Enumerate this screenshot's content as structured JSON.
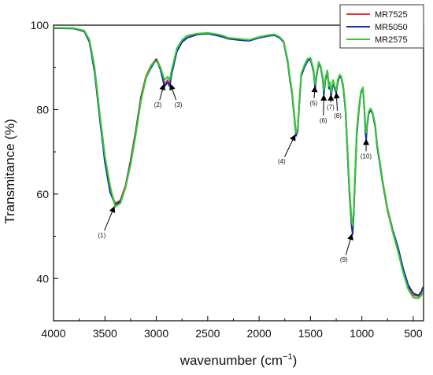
{
  "chart_data": {
    "type": "line",
    "xlabel": "wavenumber (cm",
    "xlabel_sup": "−1",
    "xlabel_close": ")",
    "ylabel": "Transmitance (%)",
    "xlim": [
      4000,
      400
    ],
    "ylim": [
      30,
      100
    ],
    "x_reversed": true,
    "x_ticks": [
      4000,
      3500,
      3000,
      2500,
      2000,
      1500,
      1000,
      500
    ],
    "y_ticks": [
      40,
      60,
      80,
      100
    ],
    "grid": false,
    "legend_position": "top-right",
    "series": [
      {
        "name": "MR7525",
        "color": "#e8322b",
        "points": [
          [
            4000,
            99.3
          ],
          [
            3800,
            99.2
          ],
          [
            3700,
            98.5
          ],
          [
            3650,
            96
          ],
          [
            3600,
            89
          ],
          [
            3550,
            78
          ],
          [
            3500,
            68
          ],
          [
            3450,
            61
          ],
          [
            3400,
            57.8
          ],
          [
            3350,
            58.5
          ],
          [
            3300,
            62
          ],
          [
            3250,
            68
          ],
          [
            3200,
            75
          ],
          [
            3150,
            83
          ],
          [
            3100,
            88
          ],
          [
            3050,
            90.5
          ],
          [
            3000,
            92
          ],
          [
            2960,
            90
          ],
          [
            2920,
            86
          ],
          [
            2890,
            87
          ],
          [
            2870,
            86
          ],
          [
            2850,
            89
          ],
          [
            2800,
            94
          ],
          [
            2750,
            96
          ],
          [
            2700,
            97
          ],
          [
            2600,
            97.8
          ],
          [
            2500,
            98
          ],
          [
            2400,
            97.5
          ],
          [
            2350,
            97.2
          ],
          [
            2300,
            96.8
          ],
          [
            2200,
            96.5
          ],
          [
            2100,
            96.3
          ],
          [
            2000,
            97
          ],
          [
            1900,
            97.5
          ],
          [
            1850,
            97.6
          ],
          [
            1800,
            97
          ],
          [
            1760,
            96
          ],
          [
            1720,
            91
          ],
          [
            1700,
            87
          ],
          [
            1680,
            84
          ],
          [
            1660,
            79
          ],
          [
            1640,
            74
          ],
          [
            1625,
            75
          ],
          [
            1610,
            81
          ],
          [
            1590,
            88
          ],
          [
            1560,
            90
          ],
          [
            1530,
            91.5
          ],
          [
            1500,
            92
          ],
          [
            1470,
            89
          ],
          [
            1455,
            85.5
          ],
          [
            1440,
            88
          ],
          [
            1420,
            91
          ],
          [
            1400,
            90
          ],
          [
            1380,
            87
          ],
          [
            1370,
            84
          ],
          [
            1355,
            87
          ],
          [
            1335,
            89
          ],
          [
            1320,
            85
          ],
          [
            1310,
            86
          ],
          [
            1300,
            83.5
          ],
          [
            1280,
            86.5
          ],
          [
            1265,
            85
          ],
          [
            1250,
            84
          ],
          [
            1235,
            86.5
          ],
          [
            1215,
            88
          ],
          [
            1200,
            87.5
          ],
          [
            1180,
            85
          ],
          [
            1160,
            80
          ],
          [
            1140,
            70
          ],
          [
            1120,
            60
          ],
          [
            1100,
            53
          ],
          [
            1090,
            51
          ],
          [
            1080,
            55
          ],
          [
            1065,
            65
          ],
          [
            1050,
            74
          ],
          [
            1030,
            80
          ],
          [
            1010,
            84
          ],
          [
            990,
            85
          ],
          [
            975,
            80
          ],
          [
            965,
            75
          ],
          [
            958,
            73.5
          ],
          [
            950,
            76
          ],
          [
            935,
            79
          ],
          [
            915,
            80
          ],
          [
            895,
            79
          ],
          [
            870,
            76
          ],
          [
            850,
            71
          ],
          [
            830,
            68
          ],
          [
            800,
            63
          ],
          [
            750,
            56
          ],
          [
            700,
            51
          ],
          [
            650,
            47
          ],
          [
            600,
            42
          ],
          [
            550,
            38
          ],
          [
            500,
            36
          ],
          [
            450,
            35.8
          ],
          [
            420,
            36.5
          ],
          [
            405,
            37.5
          ]
        ]
      },
      {
        "name": "MR5050",
        "color": "#1a2ea8",
        "points": [
          [
            4000,
            99.3
          ],
          [
            3800,
            99.2
          ],
          [
            3700,
            98.5
          ],
          [
            3650,
            96
          ],
          [
            3600,
            89
          ],
          [
            3550,
            78
          ],
          [
            3500,
            67.5
          ],
          [
            3450,
            60.5
          ],
          [
            3400,
            57.5
          ],
          [
            3350,
            58.2
          ],
          [
            3300,
            61.5
          ],
          [
            3250,
            67.5
          ],
          [
            3200,
            74.5
          ],
          [
            3150,
            82.5
          ],
          [
            3100,
            87.5
          ],
          [
            3050,
            90
          ],
          [
            3000,
            91.8
          ],
          [
            2960,
            89.5
          ],
          [
            2920,
            85.5
          ],
          [
            2890,
            86.5
          ],
          [
            2870,
            85.5
          ],
          [
            2850,
            88.5
          ],
          [
            2800,
            93.8
          ],
          [
            2750,
            96
          ],
          [
            2700,
            97
          ],
          [
            2600,
            97.8
          ],
          [
            2500,
            98
          ],
          [
            2400,
            97.5
          ],
          [
            2350,
            97.2
          ],
          [
            2300,
            96.8
          ],
          [
            2200,
            96.5
          ],
          [
            2100,
            96.3
          ],
          [
            2000,
            97
          ],
          [
            1900,
            97.5
          ],
          [
            1850,
            97.6
          ],
          [
            1800,
            97
          ],
          [
            1760,
            96
          ],
          [
            1720,
            91
          ],
          [
            1700,
            87
          ],
          [
            1680,
            84
          ],
          [
            1660,
            79
          ],
          [
            1640,
            73.8
          ],
          [
            1625,
            75
          ],
          [
            1610,
            81
          ],
          [
            1590,
            88
          ],
          [
            1560,
            90
          ],
          [
            1530,
            91.5
          ],
          [
            1500,
            92
          ],
          [
            1470,
            89
          ],
          [
            1455,
            85.2
          ],
          [
            1440,
            88
          ],
          [
            1420,
            91
          ],
          [
            1400,
            90
          ],
          [
            1380,
            87
          ],
          [
            1370,
            83.5
          ],
          [
            1355,
            87
          ],
          [
            1335,
            89
          ],
          [
            1320,
            85
          ],
          [
            1310,
            86
          ],
          [
            1300,
            83.2
          ],
          [
            1280,
            86.5
          ],
          [
            1265,
            85
          ],
          [
            1250,
            84
          ],
          [
            1235,
            86.5
          ],
          [
            1215,
            88
          ],
          [
            1200,
            87.5
          ],
          [
            1180,
            85
          ],
          [
            1160,
            80
          ],
          [
            1140,
            70
          ],
          [
            1120,
            60
          ],
          [
            1100,
            52.5
          ],
          [
            1090,
            50.5
          ],
          [
            1080,
            55
          ],
          [
            1065,
            65
          ],
          [
            1050,
            74
          ],
          [
            1030,
            80
          ],
          [
            1010,
            84
          ],
          [
            990,
            85
          ],
          [
            975,
            80
          ],
          [
            965,
            74.5
          ],
          [
            958,
            73
          ],
          [
            950,
            76
          ],
          [
            935,
            79
          ],
          [
            915,
            80
          ],
          [
            895,
            79
          ],
          [
            870,
            76
          ],
          [
            850,
            71
          ],
          [
            830,
            68
          ],
          [
            800,
            63
          ],
          [
            750,
            56.5
          ],
          [
            700,
            51.5
          ],
          [
            650,
            47.5
          ],
          [
            600,
            42.5
          ],
          [
            550,
            38.5
          ],
          [
            500,
            36.5
          ],
          [
            450,
            36
          ],
          [
            420,
            37
          ],
          [
            405,
            38
          ]
        ]
      },
      {
        "name": "MR2575",
        "color": "#33cc33",
        "points": [
          [
            4000,
            99.4
          ],
          [
            3800,
            99.3
          ],
          [
            3700,
            98.7
          ],
          [
            3650,
            96.5
          ],
          [
            3600,
            90
          ],
          [
            3550,
            79
          ],
          [
            3500,
            69
          ],
          [
            3450,
            62
          ],
          [
            3400,
            57
          ],
          [
            3350,
            57.8
          ],
          [
            3300,
            61.5
          ],
          [
            3250,
            67
          ],
          [
            3200,
            74
          ],
          [
            3150,
            82
          ],
          [
            3100,
            87.5
          ],
          [
            3050,
            90.5
          ],
          [
            3000,
            91.5
          ],
          [
            2960,
            90
          ],
          [
            2920,
            87
          ],
          [
            2890,
            87.8
          ],
          [
            2870,
            87
          ],
          [
            2850,
            89.5
          ],
          [
            2800,
            94.5
          ],
          [
            2750,
            96.5
          ],
          [
            2700,
            97.5
          ],
          [
            2600,
            98
          ],
          [
            2500,
            98.2
          ],
          [
            2400,
            97.8
          ],
          [
            2350,
            97.5
          ],
          [
            2300,
            97
          ],
          [
            2200,
            96.8
          ],
          [
            2100,
            96.5
          ],
          [
            2000,
            97.2
          ],
          [
            1900,
            97.7
          ],
          [
            1850,
            97.8
          ],
          [
            1800,
            97.2
          ],
          [
            1760,
            96.2
          ],
          [
            1720,
            91.5
          ],
          [
            1700,
            87.5
          ],
          [
            1680,
            84.5
          ],
          [
            1660,
            79.5
          ],
          [
            1640,
            74.5
          ],
          [
            1625,
            75.5
          ],
          [
            1610,
            81.5
          ],
          [
            1590,
            88.5
          ],
          [
            1560,
            90.5
          ],
          [
            1530,
            92
          ],
          [
            1500,
            92.3
          ],
          [
            1470,
            89.5
          ],
          [
            1455,
            86
          ],
          [
            1440,
            88.5
          ],
          [
            1420,
            91.3
          ],
          [
            1400,
            90.3
          ],
          [
            1380,
            87.5
          ],
          [
            1370,
            84.5
          ],
          [
            1355,
            87.5
          ],
          [
            1335,
            89.3
          ],
          [
            1320,
            85.5
          ],
          [
            1310,
            86.5
          ],
          [
            1300,
            84
          ],
          [
            1280,
            87
          ],
          [
            1265,
            85.5
          ],
          [
            1250,
            84.5
          ],
          [
            1235,
            87
          ],
          [
            1215,
            88.3
          ],
          [
            1200,
            87.8
          ],
          [
            1180,
            85.5
          ],
          [
            1160,
            80.5
          ],
          [
            1140,
            71
          ],
          [
            1120,
            61
          ],
          [
            1100,
            54
          ],
          [
            1090,
            52.5
          ],
          [
            1080,
            56
          ],
          [
            1065,
            66
          ],
          [
            1050,
            75
          ],
          [
            1030,
            80.5
          ],
          [
            1010,
            84.3
          ],
          [
            990,
            85.3
          ],
          [
            975,
            80.5
          ],
          [
            965,
            76
          ],
          [
            958,
            74.5
          ],
          [
            950,
            76.5
          ],
          [
            935,
            79.5
          ],
          [
            915,
            80.3
          ],
          [
            895,
            79.3
          ],
          [
            870,
            76.5
          ],
          [
            850,
            71.5
          ],
          [
            830,
            68.5
          ],
          [
            800,
            63.5
          ],
          [
            750,
            56.5
          ],
          [
            700,
            51
          ],
          [
            650,
            46.5
          ],
          [
            600,
            41.5
          ],
          [
            550,
            37.5
          ],
          [
            500,
            35.5
          ],
          [
            450,
            35.3
          ],
          [
            420,
            36
          ],
          [
            405,
            37
          ]
        ]
      }
    ],
    "annotations": [
      {
        "label": "(1)",
        "peak": [
          3400,
          57.5
        ],
        "text_at": [
          3530,
          50.3
        ]
      },
      {
        "label": "(2)",
        "peak": [
          2920,
          86.5
        ],
        "text_at": [
          2985,
          81.2
        ]
      },
      {
        "label": "(3)",
        "peak": [
          2870,
          86.5
        ],
        "text_at": [
          2785,
          81.2
        ]
      },
      {
        "label": "(4)",
        "peak": [
          1640,
          74.5
        ],
        "text_at": [
          1780,
          67.8
        ]
      },
      {
        "label": "(5)",
        "peak": [
          1455,
          86
        ],
        "text_at": [
          1470,
          81.6
        ]
      },
      {
        "label": "(6)",
        "peak": [
          1370,
          84
        ],
        "text_at": [
          1375,
          77.5
        ]
      },
      {
        "label": "(7)",
        "peak": [
          1300,
          84
        ],
        "text_at": [
          1305,
          80.6
        ]
      },
      {
        "label": "(8)",
        "peak": [
          1250,
          84.5
        ],
        "text_at": [
          1235,
          78.6
        ]
      },
      {
        "label": "(9)",
        "peak": [
          1090,
          51
        ],
        "text_at": [
          1175,
          44.5
        ]
      },
      {
        "label": "(10)",
        "peak": [
          958,
          73.5
        ],
        "text_at": [
          960,
          69
        ]
      }
    ]
  }
}
